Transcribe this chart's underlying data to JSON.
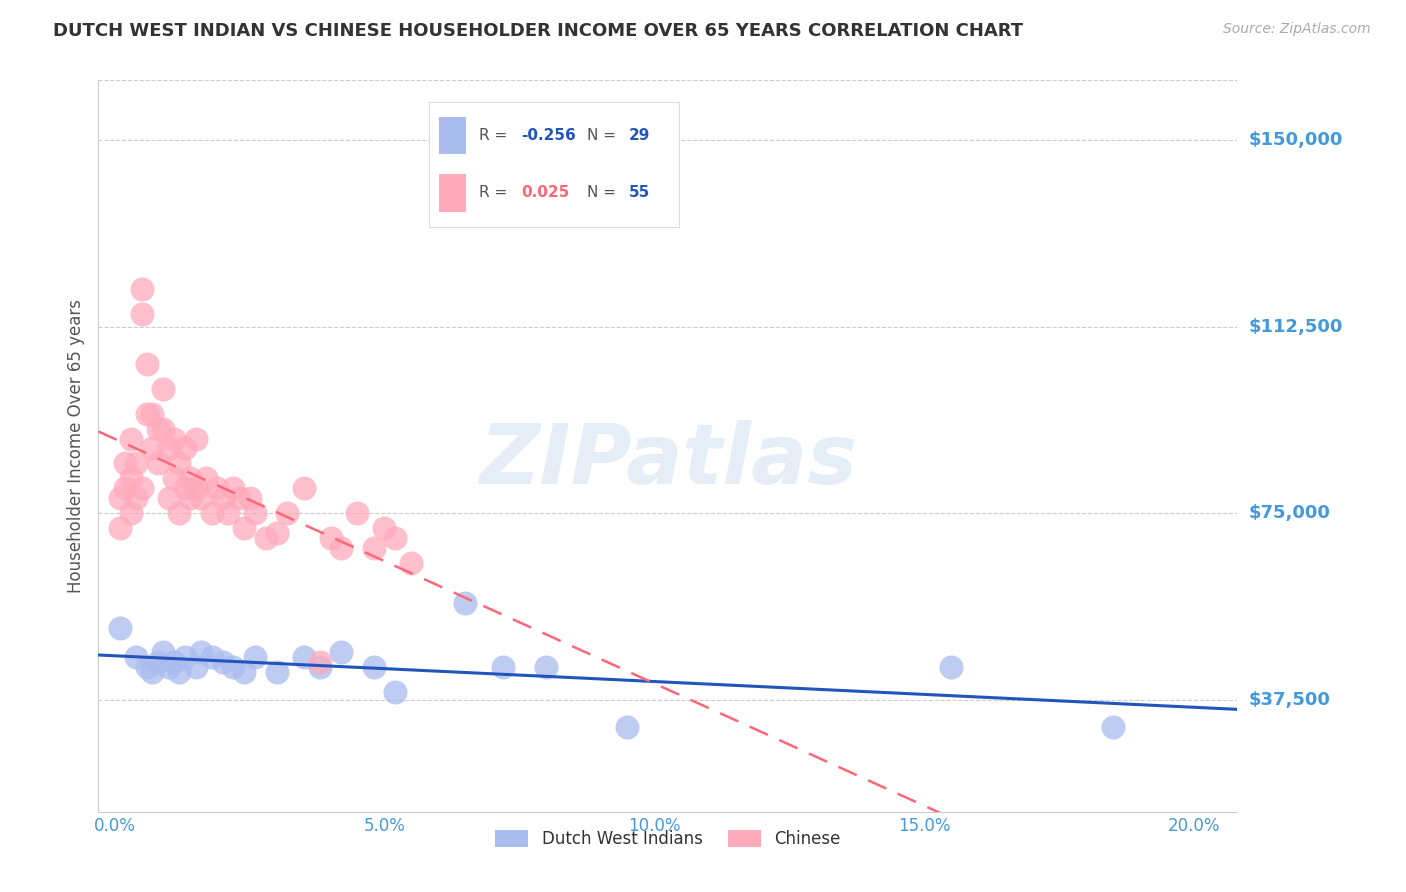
{
  "title": "DUTCH WEST INDIAN VS CHINESE HOUSEHOLDER INCOME OVER 65 YEARS CORRELATION CHART",
  "source": "Source: ZipAtlas.com",
  "ylabel": "Householder Income Over 65 years",
  "xlabel_ticks": [
    "0.0%",
    "5.0%",
    "10.0%",
    "15.0%",
    "20.0%"
  ],
  "xlabel_vals": [
    0.0,
    0.05,
    0.1,
    0.15,
    0.2
  ],
  "ytick_labels": [
    "$37,500",
    "$75,000",
    "$112,500",
    "$150,000"
  ],
  "ytick_vals": [
    37500,
    75000,
    112500,
    150000
  ],
  "ylim": [
    15000,
    162000
  ],
  "xlim": [
    -0.003,
    0.208
  ],
  "grid_color": "#cccccc",
  "dutch_color": "#aabbee",
  "chinese_color": "#ffaabb",
  "dutch_line_color": "#2255bb",
  "chinese_line_color": "#ff6677",
  "ytick_color": "#4499dd",
  "xtick_color": "#4499dd",
  "watermark": "ZIPatlas",
  "dutch_x": [
    0.001,
    0.004,
    0.006,
    0.007,
    0.008,
    0.009,
    0.01,
    0.011,
    0.012,
    0.013,
    0.015,
    0.016,
    0.018,
    0.02,
    0.022,
    0.024,
    0.026,
    0.03,
    0.035,
    0.038,
    0.042,
    0.048,
    0.052,
    0.065,
    0.072,
    0.08,
    0.095,
    0.155,
    0.185
  ],
  "dutch_y": [
    52000,
    46000,
    44000,
    43000,
    45000,
    47000,
    44000,
    45000,
    43000,
    46000,
    44000,
    47000,
    46000,
    45000,
    44000,
    43000,
    46000,
    43000,
    46000,
    44000,
    47000,
    44000,
    39000,
    57000,
    44000,
    44000,
    32000,
    44000,
    32000
  ],
  "chinese_x": [
    0.001,
    0.001,
    0.002,
    0.002,
    0.003,
    0.003,
    0.003,
    0.004,
    0.004,
    0.005,
    0.005,
    0.005,
    0.006,
    0.006,
    0.007,
    0.007,
    0.008,
    0.008,
    0.009,
    0.009,
    0.01,
    0.01,
    0.011,
    0.011,
    0.012,
    0.012,
    0.013,
    0.013,
    0.014,
    0.014,
    0.015,
    0.015,
    0.016,
    0.017,
    0.018,
    0.019,
    0.02,
    0.021,
    0.022,
    0.023,
    0.024,
    0.025,
    0.026,
    0.028,
    0.03,
    0.032,
    0.035,
    0.038,
    0.04,
    0.042,
    0.045,
    0.048,
    0.05,
    0.052,
    0.055
  ],
  "chinese_y": [
    72000,
    78000,
    80000,
    85000,
    75000,
    82000,
    90000,
    78000,
    85000,
    115000,
    120000,
    80000,
    95000,
    105000,
    95000,
    88000,
    92000,
    85000,
    100000,
    92000,
    88000,
    78000,
    82000,
    90000,
    85000,
    75000,
    80000,
    88000,
    78000,
    82000,
    80000,
    90000,
    78000,
    82000,
    75000,
    80000,
    78000,
    75000,
    80000,
    78000,
    72000,
    78000,
    75000,
    70000,
    71000,
    75000,
    80000,
    45000,
    70000,
    68000,
    75000,
    68000,
    72000,
    70000,
    65000
  ]
}
